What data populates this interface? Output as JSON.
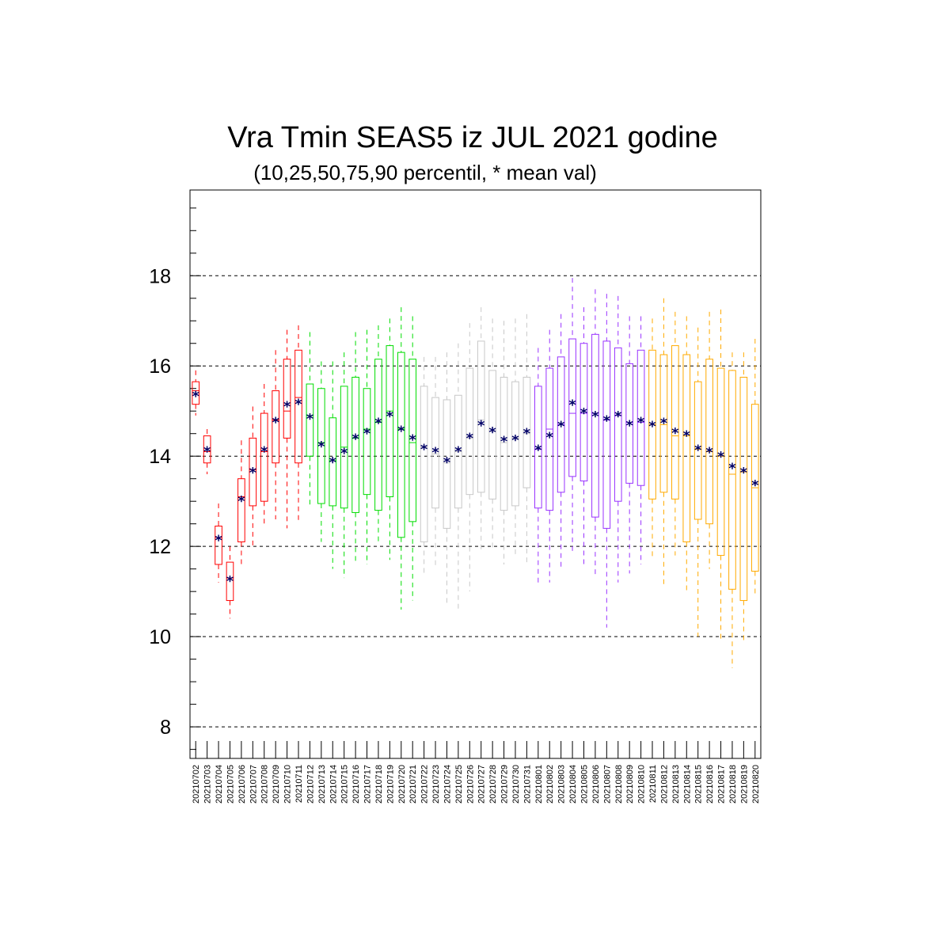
{
  "chart_data": {
    "type": "box",
    "title": "Vra Tmin SEAS5 iz JUL 2021 godine",
    "subtitle": "(10,25,50,75,90 percentil, * mean val)",
    "xlabel": "",
    "ylabel": "",
    "ylim": [
      7.3,
      19.9
    ],
    "yticks": [
      8,
      10,
      12,
      14,
      16,
      18
    ],
    "grid": "horizontal dashed at major ticks",
    "mean_marker": "*",
    "categories": [
      "20210702",
      "20210703",
      "20210704",
      "20210705",
      "20210706",
      "20210707",
      "20210708",
      "20210709",
      "20210710",
      "20210711",
      "20210712",
      "20210713",
      "20210714",
      "20210715",
      "20210716",
      "20210717",
      "20210718",
      "20210719",
      "20210720",
      "20210721",
      "20210722",
      "20210723",
      "20210724",
      "20210725",
      "20210726",
      "20210727",
      "20210728",
      "20210729",
      "20210730",
      "20210731",
      "20210801",
      "20210802",
      "20210803",
      "20210804",
      "20210805",
      "20210806",
      "20210807",
      "20210808",
      "20210809",
      "20210810",
      "20210811",
      "20210812",
      "20210813",
      "20210814",
      "20210815",
      "20210816",
      "20210817",
      "20210818",
      "20210819",
      "20210820"
    ],
    "colors": {
      "july_early": "#ff0000",
      "july_mid": "#00dd00",
      "july_late": "#c8c8c8",
      "august_early": "#9933ff",
      "august_late": "#ffaa00",
      "mean": "#000066"
    },
    "series_color_keys": [
      "july_early",
      "july_early",
      "july_early",
      "july_early",
      "july_early",
      "july_early",
      "july_early",
      "july_early",
      "july_early",
      "july_early",
      "july_mid",
      "july_mid",
      "july_mid",
      "july_mid",
      "july_mid",
      "july_mid",
      "july_mid",
      "july_mid",
      "july_mid",
      "july_mid",
      "july_late",
      "july_late",
      "july_late",
      "july_late",
      "july_late",
      "july_late",
      "july_late",
      "july_late",
      "july_late",
      "july_late",
      "august_early",
      "august_early",
      "august_early",
      "august_early",
      "august_early",
      "august_early",
      "august_early",
      "august_early",
      "august_early",
      "august_early",
      "august_late",
      "august_late",
      "august_late",
      "august_late",
      "august_late",
      "august_late",
      "august_late",
      "august_late",
      "august_late",
      "august_late"
    ],
    "p10": [
      14.9,
      13.6,
      11.2,
      10.4,
      11.6,
      12.0,
      12.5,
      12.6,
      12.4,
      12.5,
      12.9,
      12.1,
      11.5,
      11.3,
      11.6,
      11.6,
      12.1,
      11.7,
      10.6,
      10.8,
      11.4,
      11.5,
      10.7,
      10.6,
      11.0,
      11.9,
      11.9,
      11.6,
      11.8,
      11.6,
      11.2,
      11.2,
      11.5,
      11.9,
      11.6,
      11.3,
      10.2,
      11.2,
      11.4,
      11.6,
      11.7,
      11.1,
      11.8,
      11.0,
      10.0,
      11.5,
      9.9,
      9.3,
      9.9,
      10.9
    ],
    "p25": [
      15.15,
      13.85,
      11.6,
      10.8,
      12.1,
      12.9,
      13.0,
      13.85,
      14.4,
      13.85,
      14.0,
      12.95,
      12.9,
      12.85,
      12.75,
      13.15,
      12.8,
      13.1,
      12.2,
      12.55,
      12.1,
      12.85,
      12.4,
      12.85,
      13.15,
      13.2,
      13.05,
      12.8,
      12.9,
      13.3,
      12.85,
      12.8,
      13.2,
      13.55,
      13.45,
      12.65,
      12.4,
      13.0,
      13.4,
      13.35,
      13.05,
      13.2,
      13.05,
      12.1,
      12.6,
      12.5,
      11.8,
      11.05,
      10.8,
      11.45
    ],
    "p50": [
      15.45,
      14.1,
      12.2,
      11.3,
      13.1,
      13.7,
      14.1,
      14.8,
      15.0,
      15.3,
      14.9,
      14.3,
      13.9,
      14.2,
      14.4,
      14.6,
      14.75,
      15.0,
      14.6,
      14.3,
      14.2,
      14.05,
      13.85,
      14.1,
      14.4,
      14.8,
      14.55,
      14.3,
      14.4,
      14.5,
      14.15,
      14.6,
      14.7,
      14.95,
      14.95,
      14.95,
      14.8,
      14.9,
      14.75,
      14.75,
      14.7,
      14.7,
      14.45,
      14.45,
      14.15,
      14.1,
      14.0,
      13.6,
      13.65,
      13.3
    ],
    "p75": [
      15.65,
      14.45,
      12.45,
      11.65,
      13.5,
      14.4,
      14.95,
      15.45,
      16.15,
      16.35,
      15.6,
      15.5,
      14.85,
      15.55,
      15.75,
      15.5,
      16.15,
      16.45,
      16.3,
      16.15,
      15.55,
      15.3,
      15.25,
      15.35,
      15.95,
      16.55,
      15.9,
      15.75,
      15.65,
      15.75,
      15.55,
      15.95,
      16.2,
      16.6,
      16.5,
      16.7,
      16.55,
      16.4,
      16.05,
      16.35,
      16.35,
      16.25,
      16.45,
      16.25,
      15.65,
      16.15,
      15.95,
      15.9,
      15.75,
      15.15
    ],
    "p90": [
      15.9,
      14.6,
      12.95,
      12.0,
      14.35,
      15.1,
      15.6,
      16.35,
      16.8,
      16.9,
      16.75,
      16.1,
      16.1,
      16.3,
      16.75,
      16.8,
      16.9,
      17.05,
      17.3,
      17.1,
      16.2,
      16.2,
      16.3,
      16.5,
      16.95,
      17.3,
      17.05,
      17.0,
      17.05,
      17.15,
      16.4,
      16.8,
      17.15,
      17.95,
      17.3,
      17.7,
      17.6,
      17.55,
      17.1,
      17.1,
      17.05,
      17.5,
      17.2,
      17.1,
      16.85,
      17.2,
      17.25,
      16.3,
      16.3,
      16.6
    ],
    "mean": [
      15.35,
      14.12,
      12.15,
      11.25,
      13.02,
      13.65,
      14.12,
      14.77,
      15.12,
      15.17,
      14.85,
      14.23,
      13.88,
      14.08,
      14.4,
      14.52,
      14.75,
      14.9,
      14.57,
      14.38,
      14.17,
      14.1,
      13.88,
      14.12,
      14.42,
      14.7,
      14.55,
      14.35,
      14.37,
      14.52,
      14.15,
      14.43,
      14.68,
      15.15,
      14.97,
      14.9,
      14.8,
      14.9,
      14.7,
      14.77,
      14.68,
      14.75,
      14.53,
      14.47,
      14.15,
      14.1,
      14.0,
      13.75,
      13.65,
      13.37
    ]
  }
}
